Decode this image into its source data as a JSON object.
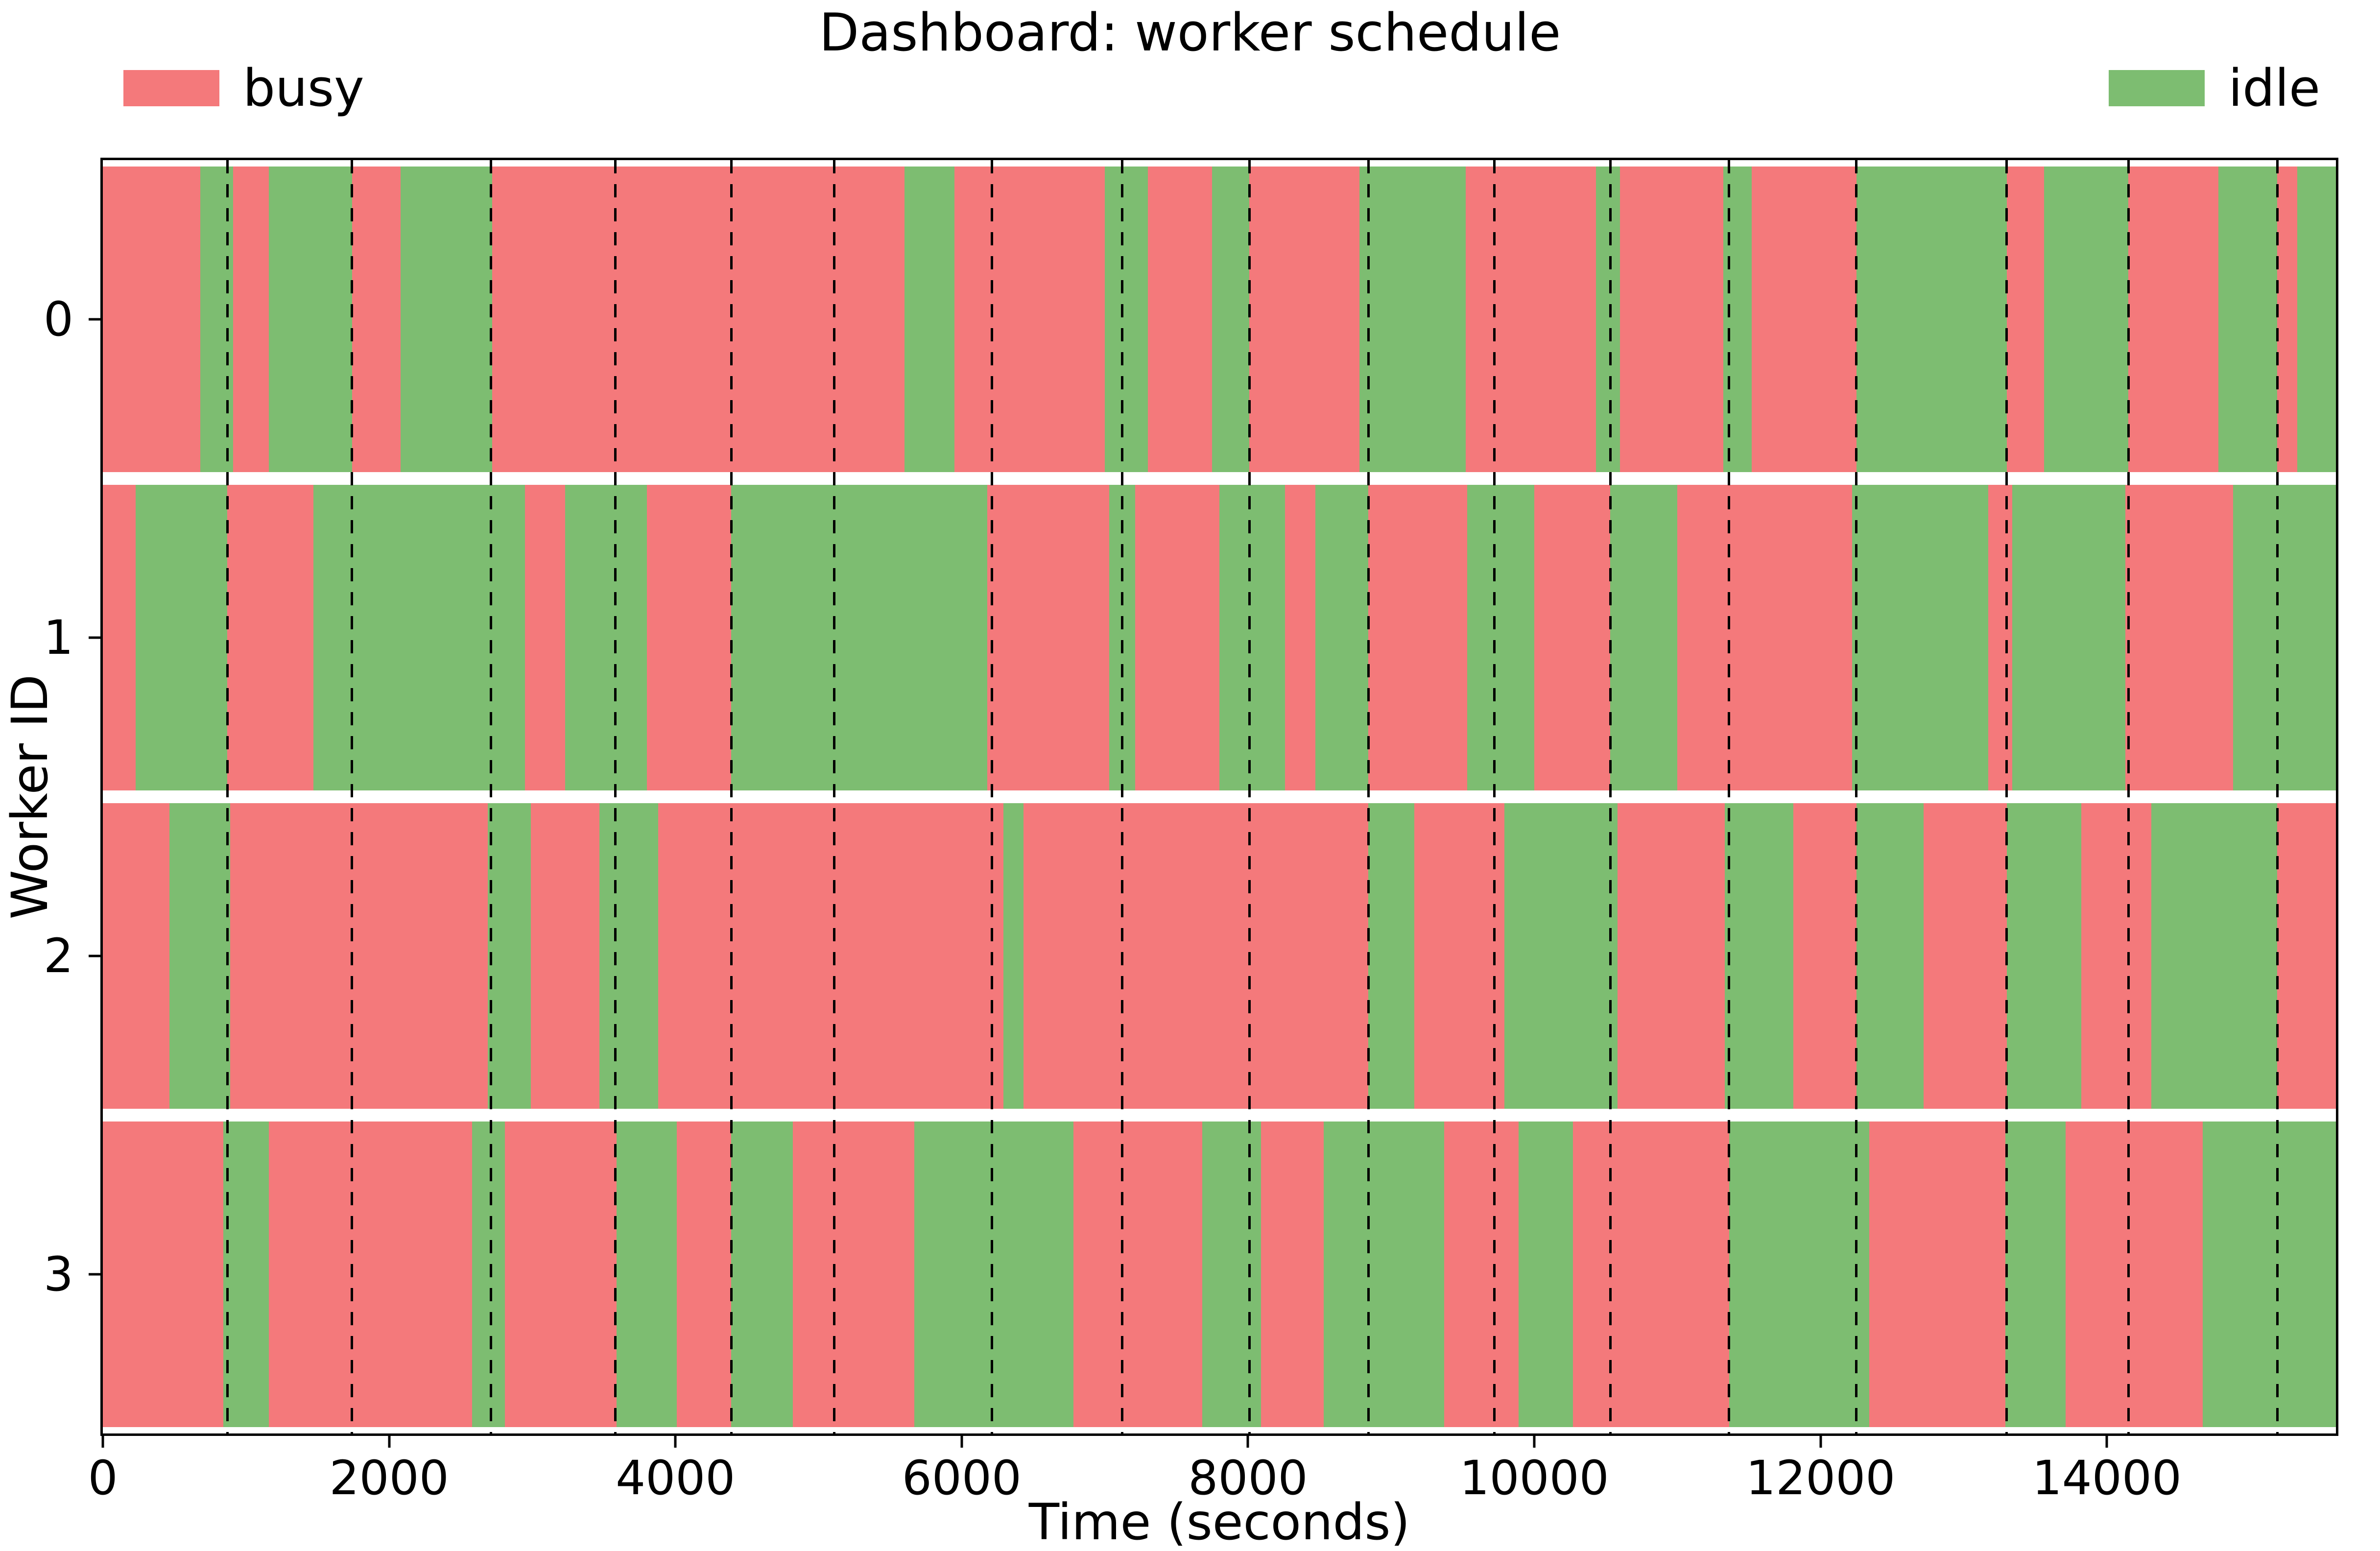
{
  "title": "Dashboard: worker schedule",
  "legend": {
    "busy_label": "busy",
    "idle_label": "idle"
  },
  "axes": {
    "xlabel": "Time (seconds)",
    "ylabel": "Worker ID"
  },
  "colors": {
    "busy": "#f4797b",
    "idle": "#7dbd71",
    "checkpoint_line": "#000000",
    "axis": "#000000"
  },
  "chart_data": {
    "type": "bar",
    "subtype": "broken-horizontal-bar-timeline",
    "title": "Dashboard: worker schedule",
    "xlabel": "Time (seconds)",
    "ylabel": "Worker ID",
    "xlim": [
      0,
      15600
    ],
    "xticks": [
      0,
      2000,
      4000,
      6000,
      8000,
      10000,
      12000,
      14000
    ],
    "grid": false,
    "legend_entries": [
      {
        "label": "busy",
        "color": "#f4797b",
        "position": "top-left"
      },
      {
        "label": "idle",
        "color": "#7dbd71",
        "position": "top-right"
      }
    ],
    "checkpoint_lines": [
      870,
      1740,
      2710,
      3580,
      4390,
      5110,
      6210,
      7120,
      8010,
      8840,
      9720,
      10530,
      11360,
      12250,
      13300,
      14150,
      15190
    ],
    "workers": [
      {
        "id": "0",
        "segments": [
          [
            0,
            680,
            "busy"
          ],
          [
            680,
            910,
            "idle"
          ],
          [
            910,
            1160,
            "busy"
          ],
          [
            1160,
            1740,
            "idle"
          ],
          [
            1740,
            2080,
            "busy"
          ],
          [
            2080,
            2720,
            "idle"
          ],
          [
            2720,
            5600,
            "busy"
          ],
          [
            5600,
            5950,
            "idle"
          ],
          [
            5950,
            7000,
            "busy"
          ],
          [
            7000,
            7300,
            "idle"
          ],
          [
            7300,
            7750,
            "busy"
          ],
          [
            7750,
            8010,
            "idle"
          ],
          [
            8010,
            8780,
            "busy"
          ],
          [
            8780,
            9520,
            "idle"
          ],
          [
            9520,
            10430,
            "busy"
          ],
          [
            10430,
            10600,
            "idle"
          ],
          [
            10600,
            11320,
            "busy"
          ],
          [
            11320,
            11520,
            "idle"
          ],
          [
            11520,
            12250,
            "busy"
          ],
          [
            12250,
            13300,
            "idle"
          ],
          [
            13300,
            13560,
            "busy"
          ],
          [
            13560,
            14150,
            "idle"
          ],
          [
            14150,
            14780,
            "busy"
          ],
          [
            14780,
            15190,
            "idle"
          ],
          [
            15190,
            15330,
            "busy"
          ],
          [
            15330,
            15600,
            "idle"
          ]
        ]
      },
      {
        "id": "1",
        "segments": [
          [
            0,
            230,
            "busy"
          ],
          [
            230,
            870,
            "idle"
          ],
          [
            870,
            1470,
            "busy"
          ],
          [
            1470,
            2950,
            "idle"
          ],
          [
            2950,
            3230,
            "busy"
          ],
          [
            3230,
            3800,
            "idle"
          ],
          [
            3800,
            4390,
            "busy"
          ],
          [
            4390,
            6180,
            "idle"
          ],
          [
            6180,
            7030,
            "busy"
          ],
          [
            7030,
            7210,
            "idle"
          ],
          [
            7210,
            7800,
            "busy"
          ],
          [
            7800,
            8260,
            "idle"
          ],
          [
            8260,
            8470,
            "busy"
          ],
          [
            8470,
            8840,
            "idle"
          ],
          [
            8840,
            9530,
            "busy"
          ],
          [
            9530,
            10000,
            "idle"
          ],
          [
            10000,
            10530,
            "busy"
          ],
          [
            10530,
            11000,
            "idle"
          ],
          [
            11000,
            12220,
            "busy"
          ],
          [
            12220,
            13170,
            "idle"
          ],
          [
            13170,
            13340,
            "busy"
          ],
          [
            13340,
            14130,
            "idle"
          ],
          [
            14130,
            14880,
            "busy"
          ],
          [
            14880,
            15600,
            "idle"
          ]
        ]
      },
      {
        "id": "2",
        "segments": [
          [
            0,
            465,
            "busy"
          ],
          [
            465,
            890,
            "idle"
          ],
          [
            890,
            2690,
            "busy"
          ],
          [
            2690,
            2990,
            "idle"
          ],
          [
            2990,
            3470,
            "busy"
          ],
          [
            3470,
            3880,
            "idle"
          ],
          [
            3880,
            6290,
            "busy"
          ],
          [
            6290,
            6430,
            "idle"
          ],
          [
            6430,
            8840,
            "busy"
          ],
          [
            8840,
            9160,
            "idle"
          ],
          [
            9160,
            9790,
            "busy"
          ],
          [
            9790,
            10580,
            "idle"
          ],
          [
            10580,
            11330,
            "busy"
          ],
          [
            11330,
            11810,
            "idle"
          ],
          [
            11810,
            12250,
            "busy"
          ],
          [
            12250,
            12720,
            "idle"
          ],
          [
            12720,
            13300,
            "busy"
          ],
          [
            13300,
            13820,
            "idle"
          ],
          [
            13820,
            14310,
            "busy"
          ],
          [
            14310,
            15190,
            "idle"
          ],
          [
            15190,
            15600,
            "busy"
          ]
        ]
      },
      {
        "id": "3",
        "segments": [
          [
            0,
            840,
            "busy"
          ],
          [
            840,
            1160,
            "idle"
          ],
          [
            1160,
            2580,
            "busy"
          ],
          [
            2580,
            2810,
            "idle"
          ],
          [
            2810,
            3590,
            "busy"
          ],
          [
            3590,
            4010,
            "idle"
          ],
          [
            4010,
            4390,
            "busy"
          ],
          [
            4390,
            4820,
            "idle"
          ],
          [
            4820,
            5670,
            "busy"
          ],
          [
            5670,
            6780,
            "idle"
          ],
          [
            6780,
            7680,
            "busy"
          ],
          [
            7680,
            8090,
            "idle"
          ],
          [
            8090,
            8530,
            "busy"
          ],
          [
            8530,
            9370,
            "idle"
          ],
          [
            9370,
            9890,
            "busy"
          ],
          [
            9890,
            10270,
            "idle"
          ],
          [
            10270,
            11360,
            "busy"
          ],
          [
            11360,
            12340,
            "idle"
          ],
          [
            12340,
            13290,
            "busy"
          ],
          [
            13290,
            13710,
            "idle"
          ],
          [
            13710,
            14670,
            "busy"
          ],
          [
            14670,
            15600,
            "idle"
          ]
        ]
      }
    ]
  }
}
